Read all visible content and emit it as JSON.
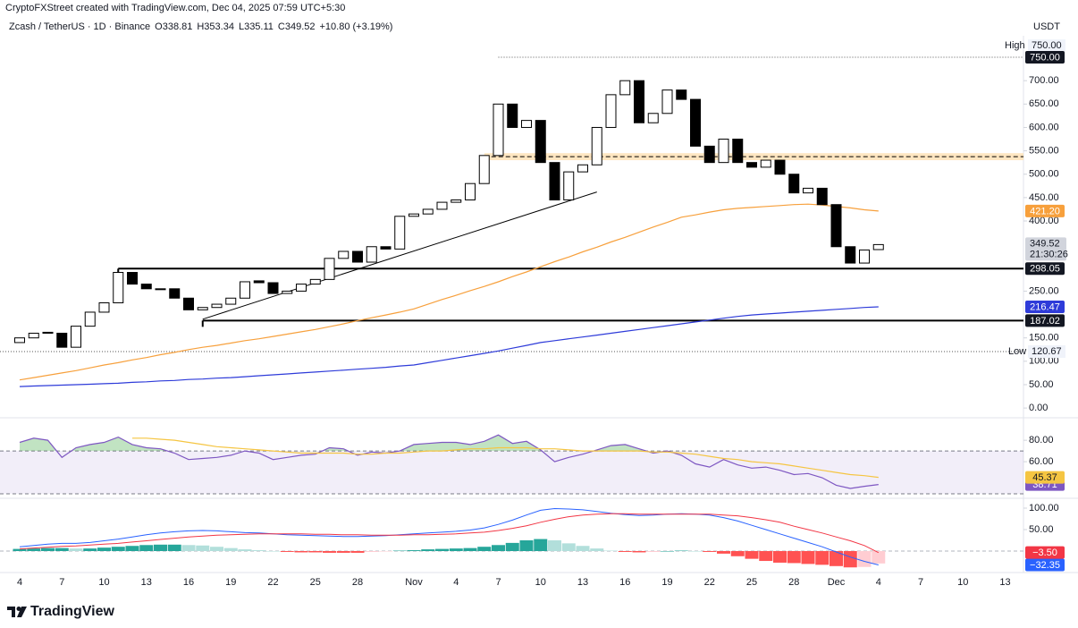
{
  "header": {
    "credit": "CryptoFXStreet created with TradingView.com, Dec 04, 2025 07:59 UTC+5:30",
    "symbol": "Zcash / TetherUS · 1D · Binance",
    "ohlc": [
      "O338.81",
      "H353.34",
      "L335.11",
      "C349.52",
      "+10.80 (+3.19%)"
    ],
    "currency": "USDT"
  },
  "footer": {
    "logo": "TradingView"
  },
  "chart_data": [
    {
      "type": "candlestick",
      "categories": [
        "4",
        null,
        null,
        "7",
        null,
        null,
        "10",
        null,
        null,
        "13",
        null,
        null,
        "16",
        null,
        null,
        "19",
        null,
        null,
        "22",
        null,
        null,
        "25",
        null,
        null,
        "28",
        null,
        null,
        null,
        "Nov",
        null,
        null,
        "4",
        null,
        null,
        "7",
        null,
        null,
        "10",
        null,
        null,
        "13",
        null,
        null,
        "16",
        null,
        null,
        "19",
        null,
        null,
        "22",
        null,
        null,
        "25",
        null,
        null,
        "28",
        null,
        null,
        "Dec",
        null,
        null,
        "4",
        null,
        null,
        "7",
        null,
        null,
        "10",
        null,
        null,
        "13"
      ],
      "open": [
        140,
        150,
        160,
        160,
        130,
        175,
        205,
        225,
        290,
        265,
        255,
        255,
        235,
        210,
        215,
        222,
        235,
        272,
        268,
        245,
        250,
        265,
        275,
        320,
        335,
        312,
        345,
        340,
        410,
        415,
        425,
        440,
        445,
        480,
        540,
        650,
        600,
        615,
        525,
        445,
        505,
        520,
        600,
        670,
        700,
        610,
        630,
        680,
        660,
        560,
        525,
        575,
        525,
        515,
        530,
        500,
        460,
        470,
        435,
        345,
        310,
        338.81,
        null,
        null,
        null,
        null,
        null,
        null,
        null,
        null,
        null
      ],
      "high": {
        "name": "High",
        "value": 750,
        "label": "750.00",
        "from": 34
      },
      "low": {
        "name": "Low",
        "value": 120.67,
        "label": "120.67"
      },
      "close": [
        150,
        160,
        162,
        130,
        175,
        205,
        225,
        290,
        265,
        255,
        255,
        235,
        210,
        215,
        222,
        235,
        270,
        268,
        245,
        250,
        265,
        275,
        320,
        335,
        312,
        345,
        340,
        410,
        415,
        425,
        440,
        445,
        480,
        540,
        650,
        600,
        615,
        525,
        445,
        505,
        520,
        600,
        670,
        700,
        610,
        630,
        680,
        660,
        560,
        525,
        575,
        525,
        515,
        530,
        500,
        460,
        470,
        435,
        345,
        310,
        338,
        349.52,
        null,
        null,
        null,
        null,
        null,
        null,
        null,
        null,
        null
      ],
      "up_color": "#ffffff",
      "down_color": "#000000",
      "wick_color": "#000000",
      "overlays": [
        {
          "color": "#f7a03c",
          "label": "421.20",
          "values": [
            60,
            65,
            70,
            75,
            80,
            86,
            92,
            97,
            103,
            108,
            114,
            119,
            125,
            130,
            134,
            139,
            144,
            148,
            153,
            158,
            163,
            168,
            174,
            180,
            187,
            193,
            199,
            205,
            212,
            222,
            232,
            241,
            251,
            260,
            270,
            281,
            291,
            302,
            313,
            323,
            334,
            344,
            355,
            365,
            376,
            387,
            397,
            408,
            413,
            419,
            424,
            427,
            429,
            431,
            433,
            435,
            436,
            434,
            431,
            428,
            424,
            421.2,
            null,
            null,
            null,
            null,
            null,
            null,
            null,
            null,
            null
          ]
        },
        {
          "color": "#2e3bd9",
          "label": "216.47",
          "values": [
            46,
            47,
            48,
            49,
            50,
            51,
            52,
            53,
            55,
            56,
            58,
            59,
            61,
            62,
            64,
            65,
            67,
            69,
            71,
            73,
            75,
            77,
            79,
            81,
            83,
            85,
            87,
            90,
            92,
            97,
            102,
            107,
            112,
            117,
            122,
            128,
            134,
            140,
            144,
            148,
            152,
            156,
            160,
            164,
            168,
            172,
            176,
            180,
            184,
            188,
            192,
            196,
            199,
            201,
            203,
            205,
            207,
            209,
            211,
            213,
            215,
            216.47,
            null,
            null,
            null,
            null,
            null,
            null,
            null,
            null,
            null
          ]
        }
      ],
      "zone": {
        "low": 530,
        "high": 545,
        "from": 33,
        "color": "#ffe0b2"
      },
      "levels": [
        {
          "value": 298.05,
          "label": "298.05",
          "from": 7
        },
        {
          "value": 187.02,
          "label": "187.02",
          "from": 13
        }
      ],
      "trendline": {
        "from": 13,
        "from_value": 190,
        "to": 41,
        "to_value": 462
      },
      "last_price": {
        "value": 349.52,
        "label": "349.52",
        "countdown": "21:30:26"
      },
      "ylim": [
        -17,
        796
      ],
      "yticks": [
        {
          "value": 0,
          "label": "0.00"
        },
        {
          "value": 50,
          "label": "50.00"
        },
        {
          "value": 100,
          "label": "100.00"
        },
        {
          "value": 150,
          "label": "150.00"
        },
        {
          "value": 250,
          "label": "250.00"
        },
        {
          "value": 400,
          "label": "400.00"
        },
        {
          "value": 450,
          "label": "450.00"
        },
        {
          "value": 500,
          "label": "500.00"
        },
        {
          "value": 550,
          "label": "550.00"
        },
        {
          "value": 600,
          "label": "600.00"
        },
        {
          "value": 650,
          "label": "650.00"
        },
        {
          "value": 700,
          "label": "700.00"
        }
      ]
    },
    {
      "type": "line",
      "ylim": [
        27.5,
        98.5
      ],
      "yticks": [
        {
          "value": 80,
          "label": "80.00"
        },
        {
          "value": 60,
          "label": "60.00"
        }
      ],
      "band": {
        "low": 30,
        "high": 70,
        "color": "#7e57c2"
      },
      "overbought_color": "#4caf50",
      "series": [
        {
          "color": "#7e57c2",
          "label": "38.71",
          "values": [
            78,
            82,
            80,
            64,
            73,
            76,
            78,
            83,
            76,
            73,
            72,
            68,
            62,
            63,
            64,
            66,
            70,
            68,
            62,
            64,
            66,
            67,
            73,
            72,
            66,
            69,
            68,
            70,
            76,
            77,
            78,
            78,
            76,
            79,
            85,
            77,
            79,
            71,
            60,
            64,
            67,
            71,
            75,
            76,
            72,
            68,
            70,
            66,
            58,
            55,
            62,
            57,
            54,
            55,
            52,
            48,
            49,
            45,
            38,
            35,
            37,
            38.71,
            null,
            null,
            null,
            null,
            null,
            null,
            null,
            null,
            null
          ]
        },
        {
          "color": "#f5c542",
          "label": "45.37",
          "values": [
            null,
            null,
            null,
            null,
            null,
            null,
            null,
            null,
            82,
            82,
            81,
            80,
            78,
            76,
            74,
            73,
            72,
            71,
            70,
            69,
            68,
            68,
            68,
            68,
            67,
            67,
            68,
            68,
            69,
            70,
            70,
            71,
            72,
            72,
            73,
            73,
            73,
            72,
            72,
            71,
            70,
            70,
            70,
            70,
            70,
            69,
            69,
            68,
            67,
            65,
            63,
            62,
            60,
            59,
            58,
            56,
            54,
            52,
            50,
            48,
            47,
            45.37,
            null,
            null,
            null,
            null,
            null,
            null,
            null,
            null,
            null
          ]
        }
      ]
    },
    {
      "type": "macd",
      "ylim": [
        -43.75,
        116.67
      ],
      "yticks": [
        {
          "value": 100,
          "label": "100.00"
        },
        {
          "value": 50,
          "label": "50.00"
        }
      ],
      "histogram": {
        "colors": {
          "up_rising": "#26a69a",
          "up_falling": "#b2dfdb",
          "down_falling": "#ff5252",
          "down_rising": "#ffcdd2"
        },
        "values": [
          5,
          6,
          7,
          7,
          6,
          6,
          8,
          10,
          12,
          14,
          15,
          15,
          14,
          13,
          10,
          7,
          4,
          2,
          0,
          -2,
          -3,
          -3,
          -4,
          -4,
          -4,
          -2,
          -1,
          1,
          2,
          4,
          5,
          6,
          7,
          10,
          14,
          19,
          25,
          28,
          25,
          18,
          12,
          6,
          1,
          -2,
          -3,
          -2,
          0,
          1,
          0,
          -2,
          -6,
          -12,
          -18,
          -23,
          -27,
          -28,
          -30,
          -32,
          -35,
          -38,
          -37,
          -28.85,
          null,
          null,
          null,
          null,
          null,
          null,
          null,
          null,
          null
        ]
      },
      "series": [
        {
          "color": "#2962ff",
          "label": "−32.35",
          "values": [
            10,
            13,
            16,
            18,
            18,
            20,
            24,
            28,
            33,
            38,
            42,
            45,
            47,
            48,
            47,
            45,
            43,
            42,
            40,
            38,
            37,
            36,
            35,
            34,
            34,
            35,
            36,
            38,
            40,
            42,
            44,
            46,
            49,
            54,
            62,
            72,
            84,
            95,
            99,
            98,
            96,
            92,
            88,
            85,
            83,
            84,
            86,
            87,
            86,
            84,
            78,
            70,
            60,
            50,
            40,
            30,
            20,
            10,
            -2,
            -14,
            -24,
            -32.35,
            null,
            null,
            null,
            null,
            null,
            null,
            null,
            null,
            null
          ]
        },
        {
          "color": "#f23645",
          "label": "−3.50",
          "values": [
            5,
            7,
            9,
            11,
            12,
            14,
            16,
            18,
            21,
            24,
            27,
            30,
            33,
            35,
            37,
            38,
            39,
            40,
            40,
            40,
            40,
            39,
            39,
            38,
            38,
            37,
            37,
            37,
            38,
            38,
            39,
            40,
            42,
            44,
            48,
            53,
            59,
            67,
            74,
            80,
            84,
            86,
            87,
            87,
            86,
            86,
            86,
            86,
            86,
            86,
            84,
            82,
            78,
            73,
            67,
            58,
            50,
            42,
            33,
            24,
            13,
            -3.5,
            null,
            null,
            null,
            null,
            null,
            null,
            null,
            null,
            null
          ]
        }
      ]
    }
  ]
}
